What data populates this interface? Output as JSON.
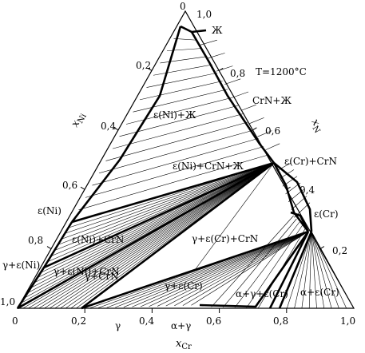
{
  "title": "T=1200°C",
  "axes": {
    "bottom": {
      "title": "x",
      "title_sub": "Cr",
      "ticks": [
        "0",
        "0,2",
        "0,4",
        "0,6",
        "0,8",
        "1,0"
      ]
    },
    "left": {
      "title": "x",
      "title_sub": "Ni",
      "ticks": [
        "1,0",
        "0,8",
        "0,6",
        "0,4",
        "0,2",
        "0"
      ]
    },
    "right": {
      "title": "x",
      "title_sub": "N",
      "ticks": [
        "0,2",
        "0,4",
        "0,6",
        "0,8",
        "1,0"
      ]
    }
  },
  "regions": {
    "liquid": "Ж",
    "crn_liquid": "CrN+Ж",
    "eps_ni_liquid": "ε(Ni)+Ж",
    "eps_ni_crn_liquid": "ε(Ni)+CrN+Ж",
    "eps_cr_crn": "ε(Cr)+CrN",
    "eps_cr": "ε(Cr)",
    "eps_ni": "ε(Ni)",
    "eps_ni_crn": "ε(Ni)+CrN",
    "gamma_eps_ni_crn": "γ+ε(Ni)+CrN",
    "gamma_eps_cr_crn": "γ+ε(Cr)+CrN",
    "gamma_eps_ni": "γ+ε(Ni)",
    "gamma_crn": "γ+CrN",
    "gamma_eps_cr": "γ+ε(Cr)",
    "alpha_gamma_eps_cr": "α+γ+ε(Cr)",
    "alpha_eps_cr": "α+ε(Cr)",
    "gamma": "γ",
    "alpha_gamma": "α+γ"
  }
}
